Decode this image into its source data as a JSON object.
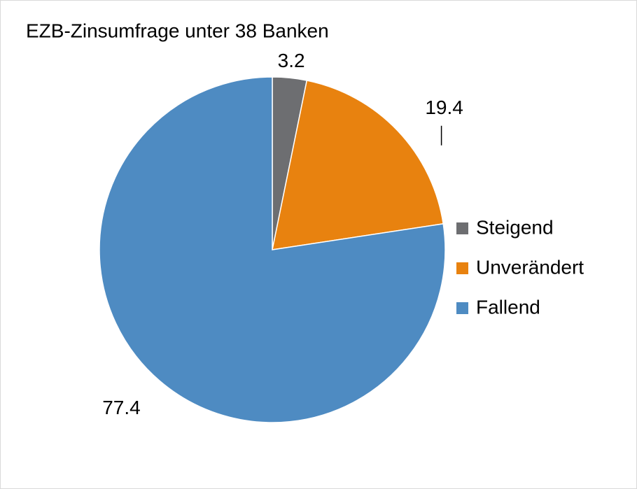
{
  "chart_data": {
    "type": "pie",
    "title": "EZB-Zinsumfrage unter 38 Banken",
    "categories": [
      "Steigend",
      "Unverändert",
      "Fallend"
    ],
    "values": [
      3.2,
      19.4,
      77.4
    ],
    "colors": [
      "#6d6e71",
      "#e8820f",
      "#4e8bc2"
    ],
    "legend": "right"
  }
}
